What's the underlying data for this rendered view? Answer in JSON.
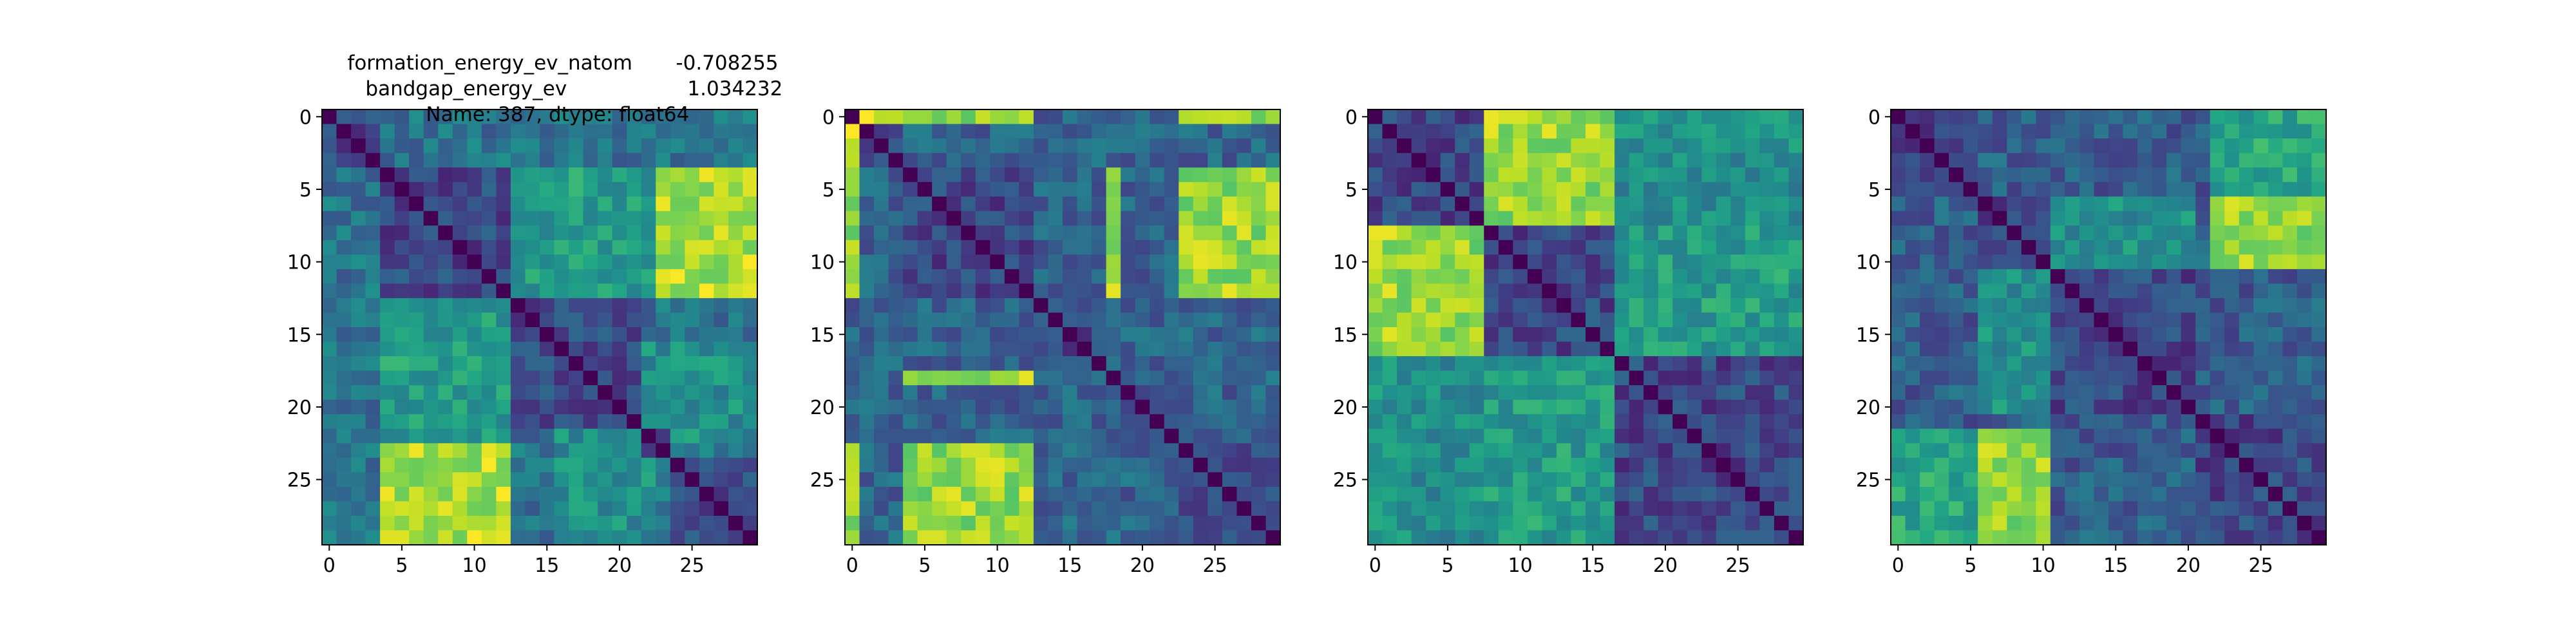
{
  "figure": {
    "title_lines": [
      {
        "key": "formation_energy_ev_natom",
        "value": "-0.708255"
      },
      {
        "key": "bandgap_energy_ev",
        "value": "1.034232"
      },
      {
        "text": "Name: 387, dtype: float64"
      }
    ]
  },
  "chart_data": [
    {
      "type": "heatmap",
      "title": "",
      "colormap": "viridis",
      "matrix_size": 30,
      "xticks": [
        0,
        5,
        10,
        15,
        20,
        25
      ],
      "yticks": [
        0,
        5,
        10,
        15,
        20,
        25
      ],
      "xlabel": "",
      "ylabel": "",
      "diagonal_value": 0,
      "block_boundaries": [
        1,
        4,
        13,
        22,
        24
      ],
      "background_level": 0.38,
      "bright_blocks": [
        {
          "rows": [
            7,
            13
          ],
          "cols": [
            23,
            30
          ],
          "level": 0.88
        },
        {
          "rows": [
            23,
            30
          ],
          "cols": [
            4,
            13
          ],
          "level": 0.88
        },
        {
          "rows": [
            4,
            7
          ],
          "cols": [
            23,
            30
          ],
          "level": 0.65
        },
        {
          "rows": [
            13,
            24
          ],
          "cols": [
            4,
            13
          ],
          "level": 0.55
        },
        {
          "rows": [
            22,
            30
          ],
          "cols": [
            16,
            23
          ],
          "level": 0.5
        }
      ]
    },
    {
      "type": "heatmap",
      "title": "",
      "colormap": "viridis",
      "matrix_size": 30,
      "xticks": [
        0,
        5,
        10,
        15,
        20,
        25
      ],
      "yticks": [
        0,
        5,
        10,
        15,
        20,
        25
      ],
      "xlabel": "",
      "ylabel": "",
      "diagonal_value": 0,
      "block_boundaries": [
        1,
        4,
        13,
        18,
        19,
        23
      ],
      "background_level": 0.32,
      "bright_blocks": [
        {
          "rows": [
            0,
            1
          ],
          "cols": [
            1,
            4
          ],
          "level": 0.9
        },
        {
          "rows": [
            1,
            4
          ],
          "cols": [
            0,
            1
          ],
          "level": 0.9
        },
        {
          "rows": [
            0,
            1
          ],
          "cols": [
            4,
            13
          ],
          "level": 0.85
        },
        {
          "rows": [
            4,
            13
          ],
          "cols": [
            0,
            1
          ],
          "level": 0.85
        },
        {
          "rows": [
            4,
            13
          ],
          "cols": [
            23,
            30
          ],
          "level": 0.85
        },
        {
          "rows": [
            23,
            30
          ],
          "cols": [
            4,
            13
          ],
          "level": 0.85
        },
        {
          "rows": [
            18,
            19
          ],
          "cols": [
            4,
            13
          ],
          "level": 0.85
        },
        {
          "rows": [
            4,
            13
          ],
          "cols": [
            18,
            19
          ],
          "level": 0.85
        },
        {
          "rows": [
            0,
            1
          ],
          "cols": [
            23,
            30
          ],
          "level": 0.8
        },
        {
          "rows": [
            23,
            30
          ],
          "cols": [
            0,
            1
          ],
          "level": 0.8
        }
      ]
    },
    {
      "type": "heatmap",
      "title": "",
      "colormap": "viridis",
      "matrix_size": 30,
      "xticks": [
        0,
        5,
        10,
        15,
        20,
        25
      ],
      "yticks": [
        0,
        5,
        10,
        15,
        20,
        25
      ],
      "xlabel": "",
      "ylabel": "",
      "diagonal_value": 0,
      "block_boundaries": [
        8,
        17
      ],
      "background_level": 0.33,
      "bright_blocks": [
        {
          "rows": [
            0,
            8
          ],
          "cols": [
            8,
            17
          ],
          "level": 0.85
        },
        {
          "rows": [
            8,
            17
          ],
          "cols": [
            0,
            8
          ],
          "level": 0.85
        },
        {
          "rows": [
            8,
            17
          ],
          "cols": [
            17,
            30
          ],
          "level": 0.55
        },
        {
          "rows": [
            17,
            30
          ],
          "cols": [
            8,
            17
          ],
          "level": 0.55
        },
        {
          "rows": [
            0,
            8
          ],
          "cols": [
            17,
            30
          ],
          "level": 0.5
        },
        {
          "rows": [
            17,
            30
          ],
          "cols": [
            0,
            8
          ],
          "level": 0.5
        }
      ]
    },
    {
      "type": "heatmap",
      "title": "",
      "colormap": "viridis",
      "matrix_size": 30,
      "xticks": [
        0,
        5,
        10,
        15,
        20,
        25
      ],
      "yticks": [
        0,
        5,
        10,
        15,
        20,
        25
      ],
      "xlabel": "",
      "ylabel": "",
      "diagonal_value": 0,
      "block_boundaries": [
        6,
        11,
        21
      ],
      "background_level": 0.3,
      "bright_blocks": [
        {
          "rows": [
            6,
            11
          ],
          "cols": [
            22,
            30
          ],
          "level": 0.82
        },
        {
          "rows": [
            22,
            30
          ],
          "cols": [
            6,
            11
          ],
          "level": 0.85
        },
        {
          "rows": [
            0,
            6
          ],
          "cols": [
            22,
            30
          ],
          "level": 0.6
        },
        {
          "rows": [
            22,
            30
          ],
          "cols": [
            0,
            6
          ],
          "level": 0.6
        },
        {
          "rows": [
            11,
            21
          ],
          "cols": [
            6,
            11
          ],
          "level": 0.5
        }
      ]
    }
  ]
}
